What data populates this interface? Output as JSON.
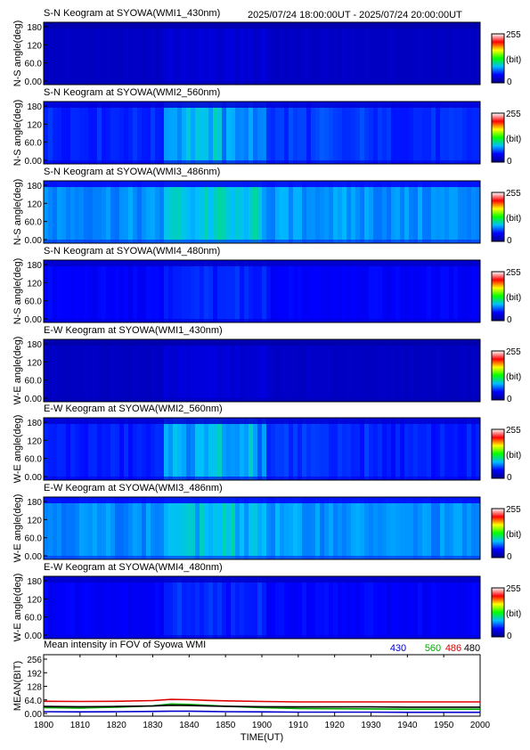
{
  "header": {
    "range": "2025/07/24 18:00:00UT - 2025/07/24 20:00:00UT"
  },
  "colors": {
    "colormap": [
      "#00008b",
      "#0000ff",
      "#00bfff",
      "#00ff00",
      "#ffff00",
      "#ff0000",
      "#ffffff"
    ],
    "series_430": "#0000cc",
    "series_560": "#00aa00",
    "series_486": "#dd0000",
    "series_480": "#000000"
  },
  "keograms": [
    {
      "title": "S-N Keogram at SYOWA(WMI1_430nm)",
      "ylabel": "N-S angle(deg)",
      "yticks": [
        "180",
        "120",
        "60.0",
        "0.00"
      ],
      "cbar": {
        "max": "255",
        "unit": "(bit)",
        "min": "0"
      },
      "level": 0.08,
      "aurora": 0.03
    },
    {
      "title": "S-N Keogram at SYOWA(WMI2_560nm)",
      "ylabel": "N-S angle(deg)",
      "yticks": [
        "180",
        "120",
        "60.0",
        "0.00"
      ],
      "cbar": {
        "max": "255",
        "unit": "(bit)",
        "min": "0"
      },
      "level": 0.2,
      "aurora": 0.12
    },
    {
      "title": "S-N Keogram at SYOWA(WMI3_486nm)",
      "ylabel": "N-S angle(deg)",
      "yticks": [
        "180",
        "120",
        "60.0",
        "0.00"
      ],
      "cbar": {
        "max": "255",
        "unit": "(bit)",
        "min": "0"
      },
      "level": 0.29,
      "aurora": 0.06
    },
    {
      "title": "S-N Keogram at SYOWA(WMI4_480nm)",
      "ylabel": "N-S angle(deg)",
      "yticks": [
        "180",
        "120",
        "60.0",
        "0.00"
      ],
      "cbar": {
        "max": "255",
        "unit": "(bit)",
        "min": "0"
      },
      "level": 0.16,
      "aurora": 0.04
    },
    {
      "title": "E-W Keogram at SYOWA(WMI1_430nm)",
      "ylabel": "W-E angle(deg)",
      "yticks": [
        "180",
        "120",
        "60.0",
        "0.00"
      ],
      "cbar": {
        "max": "255",
        "unit": "(bit)",
        "min": "0"
      },
      "level": 0.08,
      "aurora": 0.03
    },
    {
      "title": "E-W Keogram at SYOWA(WMI2_560nm)",
      "ylabel": "W-E angle(deg)",
      "yticks": [
        "180",
        "120",
        "60.0",
        "0.00"
      ],
      "cbar": {
        "max": "255",
        "unit": "(bit)",
        "min": "0"
      },
      "level": 0.19,
      "aurora": 0.12
    },
    {
      "title": "E-W Keogram at SYOWA(WMI3_486nm)",
      "ylabel": "W-E angle(deg)",
      "yticks": [
        "180",
        "120",
        "60.0",
        "0.00"
      ],
      "cbar": {
        "max": "255",
        "unit": "(bit)",
        "min": "0"
      },
      "level": 0.29,
      "aurora": 0.06
    },
    {
      "title": "E-W Keogram at SYOWA(WMI4_480nm)",
      "ylabel": "W-E angle(deg)",
      "yticks": [
        "180",
        "120",
        "60.0",
        "0.00"
      ],
      "cbar": {
        "max": "255",
        "unit": "(bit)",
        "min": "0"
      },
      "level": 0.16,
      "aurora": 0.04
    }
  ],
  "chart_data": {
    "type": "line",
    "title": "Mean intensity in FOV of Syowa WMI",
    "xlabel": "TIME(UT)",
    "ylabel": "MEAN(BIT)",
    "xlim": [
      "18:00",
      "20:00"
    ],
    "ylim": [
      0,
      256
    ],
    "xticks": [
      "1800",
      "1810",
      "1820",
      "1830",
      "1840",
      "1850",
      "1900",
      "1910",
      "1920",
      "1930",
      "1940",
      "1950",
      "2000"
    ],
    "yticks": [
      "256",
      "192",
      "128",
      "64.0",
      "0.00"
    ],
    "x": [
      "18:00",
      "18:10",
      "18:20",
      "18:30",
      "18:35",
      "18:40",
      "18:45",
      "18:50",
      "19:00",
      "19:10",
      "19:20",
      "19:30",
      "19:40",
      "19:50",
      "20:00"
    ],
    "series": [
      {
        "name": "430",
        "values": [
          12,
          11,
          12,
          13,
          14,
          14,
          13,
          12,
          11,
          10,
          10,
          10,
          9,
          9,
          9
        ]
      },
      {
        "name": "560",
        "values": [
          30,
          28,
          32,
          38,
          46,
          44,
          40,
          36,
          30,
          26,
          25,
          24,
          23,
          23,
          23
        ]
      },
      {
        "name": "486",
        "values": [
          58,
          57,
          58,
          61,
          66,
          65,
          62,
          60,
          57,
          55,
          55,
          55,
          55,
          55,
          55
        ]
      },
      {
        "name": "480",
        "values": [
          35,
          34,
          35,
          37,
          40,
          39,
          37,
          36,
          34,
          33,
          33,
          33,
          32,
          32,
          32
        ]
      }
    ]
  }
}
